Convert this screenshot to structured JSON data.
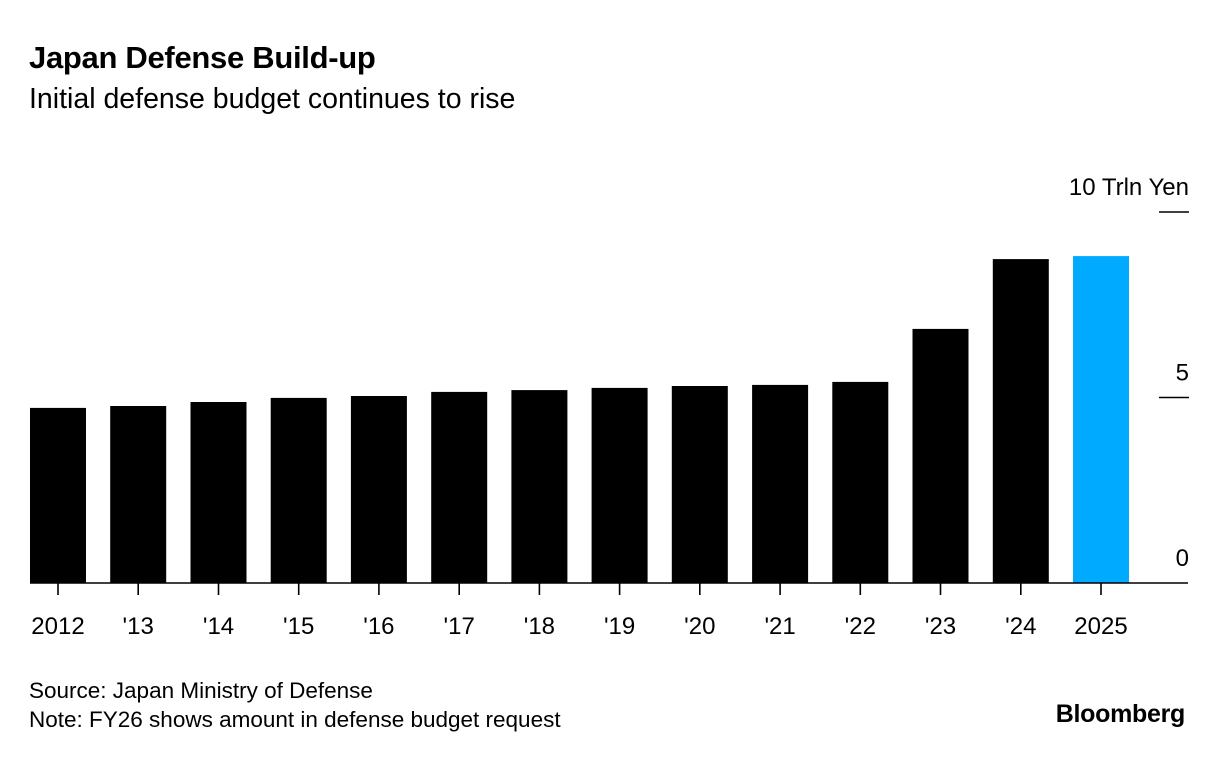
{
  "header": {
    "title": "Japan Defense Build-up",
    "subtitle": "Initial defense budget continues to rise"
  },
  "footer": {
    "source": "Source: Japan Ministry of Defense",
    "note": "Note: FY26 shows amount in defense budget request",
    "brand": "Bloomberg"
  },
  "colors": {
    "bar": "#000000",
    "highlight": "#00aaff",
    "axis": "#000000"
  },
  "chart_data": {
    "type": "bar",
    "title": "Japan Defense Build-up",
    "subtitle": "Initial defense budget continues to rise",
    "xlabel": "",
    "ylabel": "Trln Yen",
    "categories": [
      "2012",
      "'13",
      "'14",
      "'15",
      "'16",
      "'17",
      "'18",
      "'19",
      "'20",
      "'21",
      "'22",
      "'23",
      "'24",
      "2025"
    ],
    "values": [
      4.72,
      4.77,
      4.88,
      4.99,
      5.04,
      5.15,
      5.2,
      5.26,
      5.31,
      5.34,
      5.42,
      6.85,
      8.73,
      8.81
    ],
    "highlight_index": 13,
    "ylim": [
      0,
      10
    ],
    "yticks": [
      {
        "value": 0,
        "label": "0"
      },
      {
        "value": 5,
        "label": "5"
      },
      {
        "value": 10,
        "label": "10 Trln Yen"
      }
    ],
    "y_axis_side": "right",
    "grid": false,
    "legend": "none"
  }
}
